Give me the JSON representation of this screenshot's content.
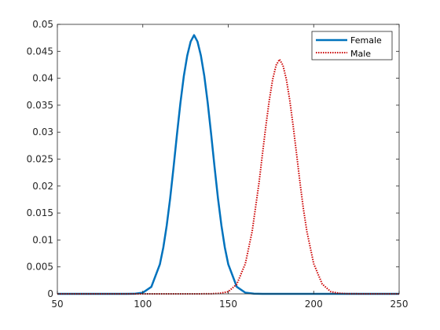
{
  "chart_data": {
    "type": "line",
    "title": "",
    "xlabel": "",
    "ylabel": "",
    "xlim": [
      50,
      250
    ],
    "ylim": [
      0,
      0.05
    ],
    "grid": false,
    "legend_position": "top-right",
    "x_ticks": [
      50,
      100,
      150,
      200,
      250
    ],
    "y_ticks": [
      0,
      0.005,
      0.01,
      0.015,
      0.02,
      0.025,
      0.03,
      0.035,
      0.04,
      0.045,
      0.05
    ],
    "series": [
      {
        "name": "Female",
        "color": "#0072BD",
        "style": "solid",
        "x": [
          50,
          60,
          70,
          80,
          90,
          95,
          100,
          105,
          110,
          112,
          114,
          116,
          118,
          120,
          122,
          124,
          126,
          128,
          130,
          132,
          134,
          136,
          138,
          140,
          142,
          144,
          146,
          148,
          150,
          155,
          160,
          165,
          170,
          180,
          200,
          250
        ],
        "y": [
          0,
          0,
          0,
          0,
          0,
          1e-05,
          0.00022,
          0.0013,
          0.0055,
          0.0086,
          0.0127,
          0.0177,
          0.0235,
          0.0296,
          0.0354,
          0.0404,
          0.0442,
          0.0468,
          0.048,
          0.0468,
          0.0442,
          0.0404,
          0.0354,
          0.0296,
          0.0235,
          0.0177,
          0.0127,
          0.0086,
          0.0055,
          0.0013,
          0.00022,
          3e-05,
          0,
          0,
          0,
          0
        ]
      },
      {
        "name": "Male",
        "color": "#CC0000",
        "style": "dotted",
        "x": [
          50,
          100,
          130,
          140,
          145,
          150,
          155,
          160,
          164,
          168,
          170,
          172,
          174,
          176,
          178,
          180,
          182,
          184,
          186,
          188,
          190,
          192,
          194,
          196,
          200,
          205,
          210,
          215,
          220,
          230,
          250
        ],
        "y": [
          0,
          0,
          0,
          2e-05,
          0.0001,
          0.0004,
          0.0018,
          0.0056,
          0.0116,
          0.0206,
          0.0259,
          0.0311,
          0.0359,
          0.0398,
          0.0424,
          0.0435,
          0.0424,
          0.0398,
          0.0359,
          0.0311,
          0.0259,
          0.0206,
          0.0157,
          0.0116,
          0.0056,
          0.0018,
          0.0004,
          0.0001,
          2e-05,
          0,
          0
        ]
      }
    ]
  }
}
